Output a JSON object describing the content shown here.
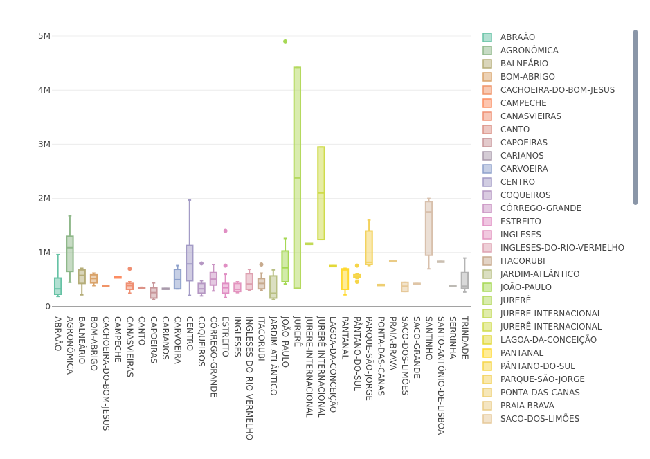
{
  "chart_data": {
    "type": "box",
    "y_ticks": [
      {
        "value": 0,
        "label": "0"
      },
      {
        "value": 1000000,
        "label": "1M"
      },
      {
        "value": 2000000,
        "label": "2M"
      },
      {
        "value": 3000000,
        "label": "3M"
      },
      {
        "value": 4000000,
        "label": "4M"
      },
      {
        "value": 5000000,
        "label": "5M"
      }
    ],
    "ylim": [
      0,
      5200000
    ],
    "grid": true,
    "legend_position": "right",
    "categories": [
      {
        "name": "ABRAÃO",
        "color": "#66c2a5",
        "min": 190000,
        "q1": 230000,
        "median": 330000,
        "q3": 530000,
        "max": 960000,
        "outliers": []
      },
      {
        "name": "AGRONÔMICA",
        "color": "#8fb88a",
        "min": 450000,
        "q1": 650000,
        "median": 1090000,
        "q3": 1300000,
        "max": 1680000,
        "outliers": []
      },
      {
        "name": "BALNEÁRIO",
        "color": "#b5ad78",
        "min": 220000,
        "q1": 430000,
        "median": 580000,
        "q3": 680000,
        "max": 710000,
        "outliers": []
      },
      {
        "name": "BOM-ABRIGO",
        "color": "#d9a36a",
        "min": 390000,
        "q1": 440000,
        "median": 520000,
        "q3": 590000,
        "max": 620000,
        "outliers": []
      },
      {
        "name": "CACHOEIRA-DO-BOM-JESUS",
        "color": "#f09468",
        "min": 380000,
        "q1": 380000,
        "median": 380000,
        "q3": 390000,
        "max": 390000,
        "outliers": []
      },
      {
        "name": "CAMPECHE",
        "color": "#fc8d62",
        "min": 540000,
        "q1": 540000,
        "median": 545000,
        "q3": 550000,
        "max": 550000,
        "outliers": []
      },
      {
        "name": "CANASVIEIRAS",
        "color": "#ef8f72",
        "min": 250000,
        "q1": 320000,
        "median": 390000,
        "q3": 430000,
        "max": 460000,
        "outliers": [
          700000
        ]
      },
      {
        "name": "CANTO",
        "color": "#dc9287",
        "min": 340000,
        "q1": 345000,
        "median": 350000,
        "q3": 355000,
        "max": 360000,
        "outliers": []
      },
      {
        "name": "CAPOEIRAS",
        "color": "#c8969a",
        "min": 130000,
        "q1": 160000,
        "median": 260000,
        "q3": 350000,
        "max": 440000,
        "outliers": []
      },
      {
        "name": "CARIANOS",
        "color": "#a99aab",
        "min": 330000,
        "q1": 330000,
        "median": 335000,
        "q3": 340000,
        "max": 340000,
        "outliers": []
      },
      {
        "name": "CARVOEIRA",
        "color": "#8da0cb",
        "min": 330000,
        "q1": 330000,
        "median": 500000,
        "q3": 690000,
        "max": 760000,
        "outliers": []
      },
      {
        "name": "CENTRO",
        "color": "#a39bc6",
        "min": 210000,
        "q1": 480000,
        "median": 790000,
        "q3": 1130000,
        "max": 1970000,
        "outliers": []
      },
      {
        "name": "COQUEIROS",
        "color": "#b597c3",
        "min": 200000,
        "q1": 250000,
        "median": 330000,
        "q3": 430000,
        "max": 480000,
        "outliers": [
          800000
        ]
      },
      {
        "name": "CÓRREGO-GRANDE",
        "color": "#ca94c3",
        "min": 290000,
        "q1": 400000,
        "median": 510000,
        "q3": 630000,
        "max": 780000,
        "outliers": []
      },
      {
        "name": "ESTREITO",
        "color": "#e08ec3",
        "min": 170000,
        "q1": 250000,
        "median": 350000,
        "q3": 430000,
        "max": 600000,
        "outliers": [
          760000,
          1400000
        ]
      },
      {
        "name": "INGLESES",
        "color": "#e394bf",
        "min": 260000,
        "q1": 280000,
        "median": 320000,
        "q3": 430000,
        "max": 460000,
        "outliers": []
      },
      {
        "name": "INGLESES-DO-RIO-VERMELHO",
        "color": "#dda0b0",
        "min": 300000,
        "q1": 320000,
        "median": 420000,
        "q3": 610000,
        "max": 690000,
        "outliers": []
      },
      {
        "name": "ITACORUBI",
        "color": "#c7aa8d",
        "min": 300000,
        "q1": 330000,
        "median": 430000,
        "q3": 520000,
        "max": 620000,
        "outliers": [
          780000
        ]
      },
      {
        "name": "JARDIM-ATLÂNTICO",
        "color": "#b8bf83",
        "min": 130000,
        "q1": 160000,
        "median": 250000,
        "q3": 570000,
        "max": 680000,
        "outliers": []
      },
      {
        "name": "JOÃO-PAULO",
        "color": "#a6d854",
        "min": 420000,
        "q1": 460000,
        "median": 720000,
        "q3": 1030000,
        "max": 1260000,
        "outliers": [
          4900000
        ]
      },
      {
        "name": "JURERÊ",
        "color": "#b4d95e",
        "min": 340000,
        "q1": 340000,
        "median": 2380000,
        "q3": 4420000,
        "max": 4420000,
        "outliers": []
      },
      {
        "name": "JURERE-INTERNACIONAL",
        "color": "#c2da56",
        "min": 1150000,
        "q1": 1150000,
        "median": 1160000,
        "q3": 1170000,
        "max": 1170000,
        "outliers": []
      },
      {
        "name": "JURERÊ-INTERNACIONAL",
        "color": "#cfdb4c",
        "min": 1240000,
        "q1": 1240000,
        "median": 2100000,
        "q3": 2950000,
        "max": 2950000,
        "outliers": []
      },
      {
        "name": "LAGOA-DA-CONCEIÇÃO",
        "color": "#e2d838",
        "min": 750000,
        "q1": 750000,
        "median": 755000,
        "q3": 760000,
        "max": 760000,
        "outliers": []
      },
      {
        "name": "PANTANAL",
        "color": "#ffd92f",
        "min": 220000,
        "q1": 320000,
        "median": 680000,
        "q3": 700000,
        "max": 710000,
        "outliers": []
      },
      {
        "name": "PÂNTANO-DO-SUL",
        "color": "#f6d548",
        "min": 520000,
        "q1": 540000,
        "median": 560000,
        "q3": 590000,
        "max": 610000,
        "outliers": [
          760000,
          460000
        ]
      },
      {
        "name": "PARQUE-SÃO-JORGE",
        "color": "#f3d25d",
        "min": 760000,
        "q1": 780000,
        "median": 820000,
        "q3": 1400000,
        "max": 1600000,
        "outliers": []
      },
      {
        "name": "PONTA-DAS-CANAS",
        "color": "#eecf72",
        "min": 400000,
        "q1": 400000,
        "median": 405000,
        "q3": 410000,
        "max": 410000,
        "outliers": []
      },
      {
        "name": "PRAIA-BRAVA",
        "color": "#eacb86",
        "min": 840000,
        "q1": 840000,
        "median": 845000,
        "q3": 850000,
        "max": 850000,
        "outliers": []
      },
      {
        "name": "SACO-DOS-LIMÕES",
        "color": "#e6c898",
        "min": 280000,
        "q1": 280000,
        "median": 380000,
        "q3": 450000,
        "max": 450000,
        "outliers": []
      },
      {
        "name": "SACO-GRANDE",
        "color": "#dfc5a6",
        "min": 420000,
        "q1": 420000,
        "median": 425000,
        "q3": 430000,
        "max": 430000,
        "outliers": []
      },
      {
        "name": "SANTINHO",
        "color": "#d8c0ac",
        "min": 700000,
        "q1": 950000,
        "median": 1750000,
        "q3": 1940000,
        "max": 2000000,
        "outliers": []
      },
      {
        "name": "SANTO-ANTÔNIO-DE-LISBOA",
        "color": "#cbbfb1",
        "min": 830000,
        "q1": 830000,
        "median": 835000,
        "q3": 840000,
        "max": 840000,
        "outliers": []
      },
      {
        "name": "SERRINHA",
        "color": "#bdbab4",
        "min": 380000,
        "q1": 380000,
        "median": 385000,
        "q3": 390000,
        "max": 390000,
        "outliers": []
      },
      {
        "name": "TRINDADE",
        "color": "#b3b3b3",
        "min": 270000,
        "q1": 340000,
        "median": 380000,
        "q3": 630000,
        "max": 900000,
        "outliers": []
      }
    ],
    "legend_visible": [
      "ABRAÃO",
      "AGRONÔMICA",
      "BALNEÁRIO",
      "BOM-ABRIGO",
      "CACHOEIRA-DO-BOM-JESUS",
      "CAMPECHE",
      "CANASVIEIRAS",
      "CANTO",
      "CAPOEIRAS",
      "CARIANOS",
      "CARVOEIRA",
      "CENTRO",
      "COQUEIROS",
      "CÓRREGO-GRANDE",
      "ESTREITO",
      "INGLESES",
      "INGLESES-DO-RIO-VERMELHO",
      "ITACORUBI",
      "JARDIM-ATLÂNTICO",
      "JOÃO-PAULO",
      "JURERÊ",
      "JURERE-INTERNACIONAL",
      "JURERÊ-INTERNACIONAL",
      "LAGOA-DA-CONCEIÇÃO",
      "PANTANAL",
      "PÂNTANO-DO-SUL",
      "PARQUE-SÃO-JORGE",
      "PONTA-DAS-CANAS",
      "PRAIA-BRAVA",
      "SACO-DOS-LIMÕES"
    ]
  }
}
